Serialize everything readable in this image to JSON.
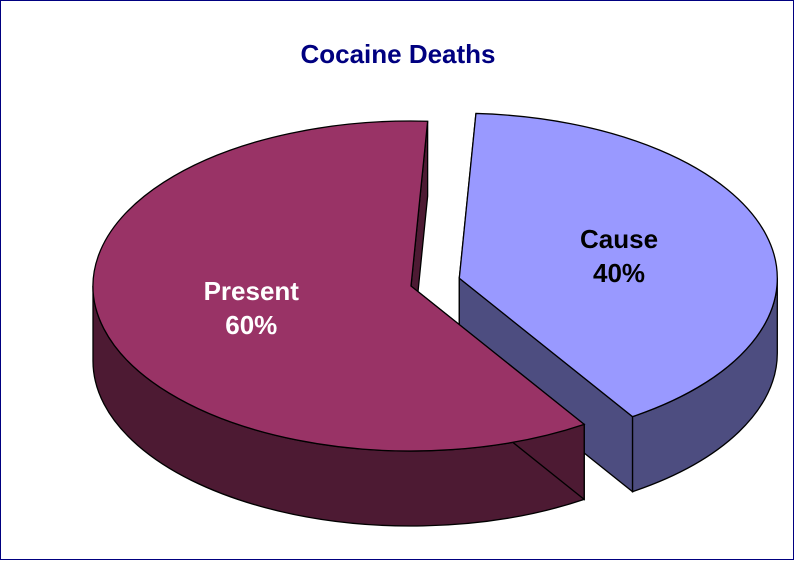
{
  "chart_data": {
    "type": "pie",
    "title": "Cocaine Deaths",
    "slices": [
      {
        "label": "Present",
        "value": 60,
        "value_label": "60%",
        "color": "#993366",
        "side_color": "#4d1a33",
        "label_color": "#ffffff"
      },
      {
        "label": "Cause",
        "value": 40,
        "value_label": "40%",
        "color": "#9999ff",
        "side_color": "#4d4d80",
        "label_color": "#000000"
      }
    ],
    "exploded": "Cause",
    "style": "3d",
    "legend": "none"
  }
}
